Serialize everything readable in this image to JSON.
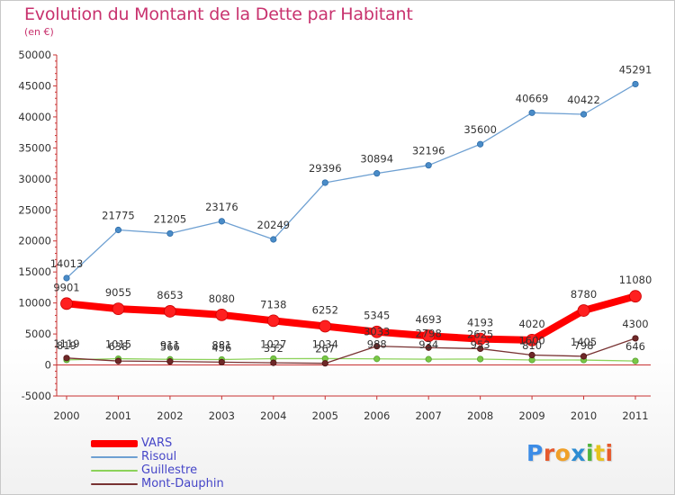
{
  "header": {
    "title": "Evolution du Montant de la Dette par Habitant",
    "subtitle": "(en €)"
  },
  "logo": {
    "letters": [
      "P",
      "r",
      "o",
      "x",
      "i",
      "t",
      "i"
    ],
    "colors": [
      "#3c8ce6",
      "#e65a2d",
      "#f0a028",
      "#2d8cd2",
      "#50b43c",
      "#e6c31e",
      "#e65a2d"
    ]
  },
  "chart_data": {
    "type": "line",
    "title": "Evolution du Montant de la Dette par Habitant",
    "subtitle": "(en €)",
    "xlabel": "",
    "ylabel": "",
    "x": [
      "2000",
      "2001",
      "2002",
      "2003",
      "2004",
      "2005",
      "2006",
      "2007",
      "2008",
      "2009",
      "2010",
      "2011"
    ],
    "ylim": [
      -5000,
      50000
    ],
    "yticks": [
      "-5000",
      "0",
      "5000",
      "10000",
      "15000",
      "20000",
      "25000",
      "30000",
      "35000",
      "40000",
      "45000",
      "50000"
    ],
    "grid": false,
    "legend_position": "bottom-left",
    "series": [
      {
        "name": "VARS",
        "color": "#ff0000",
        "values": [
          9901,
          9055,
          8653,
          8080,
          7138,
          6252,
          5345,
          4693,
          4193,
          4020,
          8780,
          11080
        ],
        "labels": [
          "9901",
          "9055",
          "8653",
          "8080",
          "7138",
          "6252",
          "5345",
          "4693",
          "4193",
          "4020",
          "8780",
          "11080"
        ]
      },
      {
        "name": "Risoul",
        "color": "#6ea0d2",
        "values": [
          14013,
          21775,
          21205,
          23176,
          20249,
          29396,
          30894,
          32196,
          35600,
          40669,
          40422,
          45291
        ],
        "labels": [
          "14013",
          "21775",
          "21205",
          "23176",
          "20249",
          "29396",
          "30894",
          "32196",
          "35600",
          "40669",
          "40422",
          "45291"
        ]
      },
      {
        "name": "Guillestre",
        "color": "#8cd25a",
        "values": [
          819,
          1015,
          911,
          881,
          1027,
          1034,
          988,
          934,
          953,
          810,
          798,
          646
        ],
        "labels": [
          "819",
          "1015",
          "911",
          "881",
          "1027",
          "1034",
          "988",
          "934",
          "953",
          "810",
          "798",
          "646"
        ]
      },
      {
        "name": "Mont-Dauphin",
        "color": "#783232",
        "values": [
          1119,
          638,
          566,
          456,
          352,
          267,
          3033,
          2798,
          2625,
          1600,
          1405,
          4300
        ],
        "labels": [
          "1119",
          "638",
          "566",
          "456",
          "352",
          "267",
          "3033",
          "2798",
          "2625",
          "1600",
          "1405",
          "4300"
        ]
      }
    ]
  }
}
